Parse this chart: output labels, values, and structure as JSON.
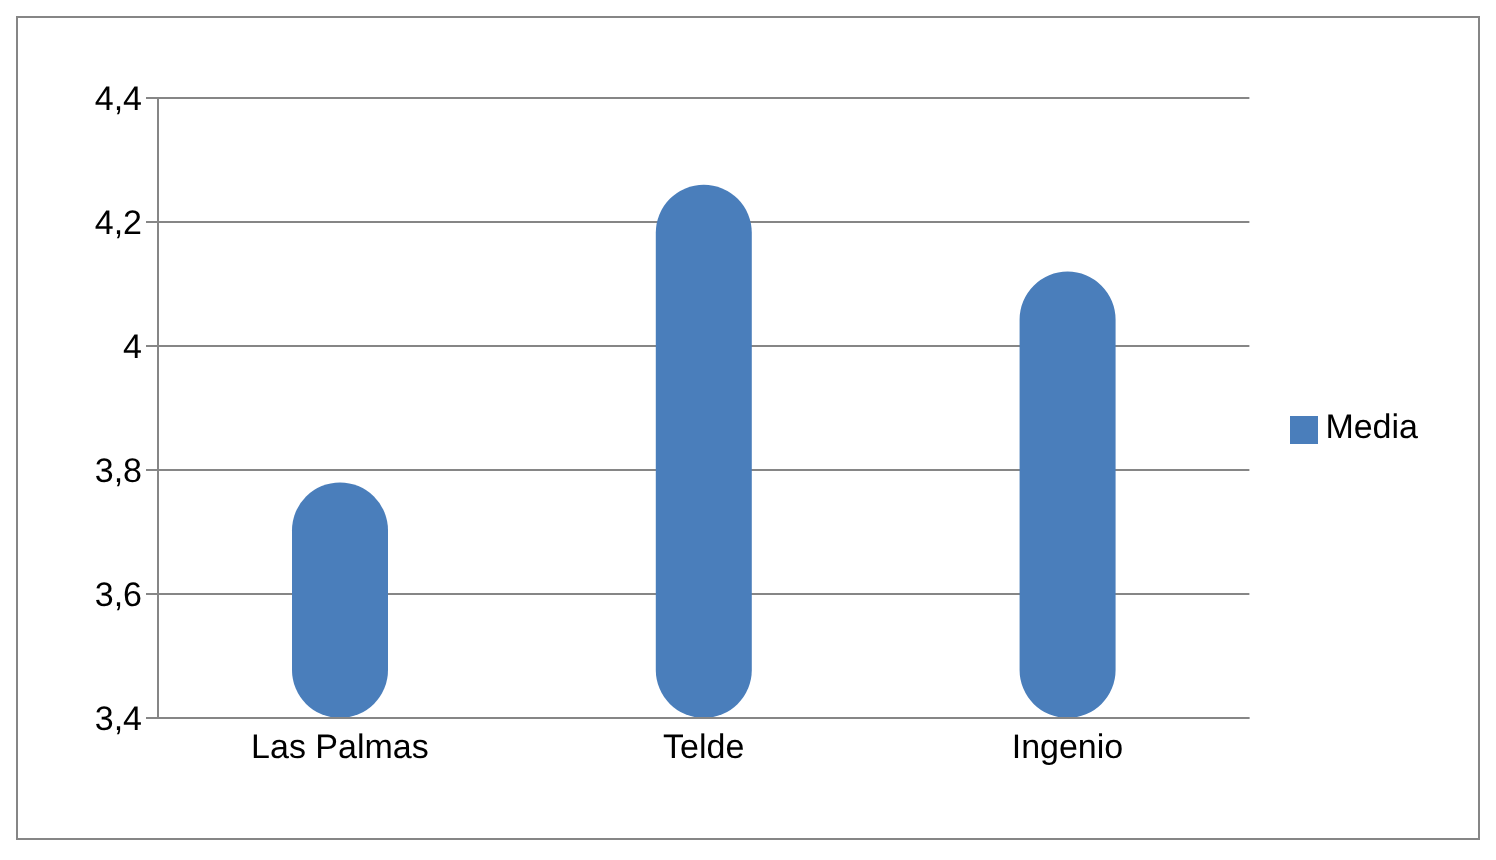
{
  "chart_data": {
    "type": "bar",
    "categories": [
      "Las Palmas",
      "Telde",
      "Ingenio"
    ],
    "series": [
      {
        "name": "Media",
        "color": "#4a7ebb",
        "values": [
          3.78,
          4.26,
          4.12
        ]
      }
    ],
    "ylim": [
      3.4,
      4.4
    ],
    "yticks": [
      {
        "value": 3.4,
        "label": "3,4"
      },
      {
        "value": 3.6,
        "label": "3,6"
      },
      {
        "value": 3.8,
        "label": "3,8"
      },
      {
        "value": 4,
        "label": "4"
      },
      {
        "value": 4.2,
        "label": "4,2"
      },
      {
        "value": 4.4,
        "label": "4,4"
      }
    ],
    "grid": "y",
    "legend": "right"
  }
}
